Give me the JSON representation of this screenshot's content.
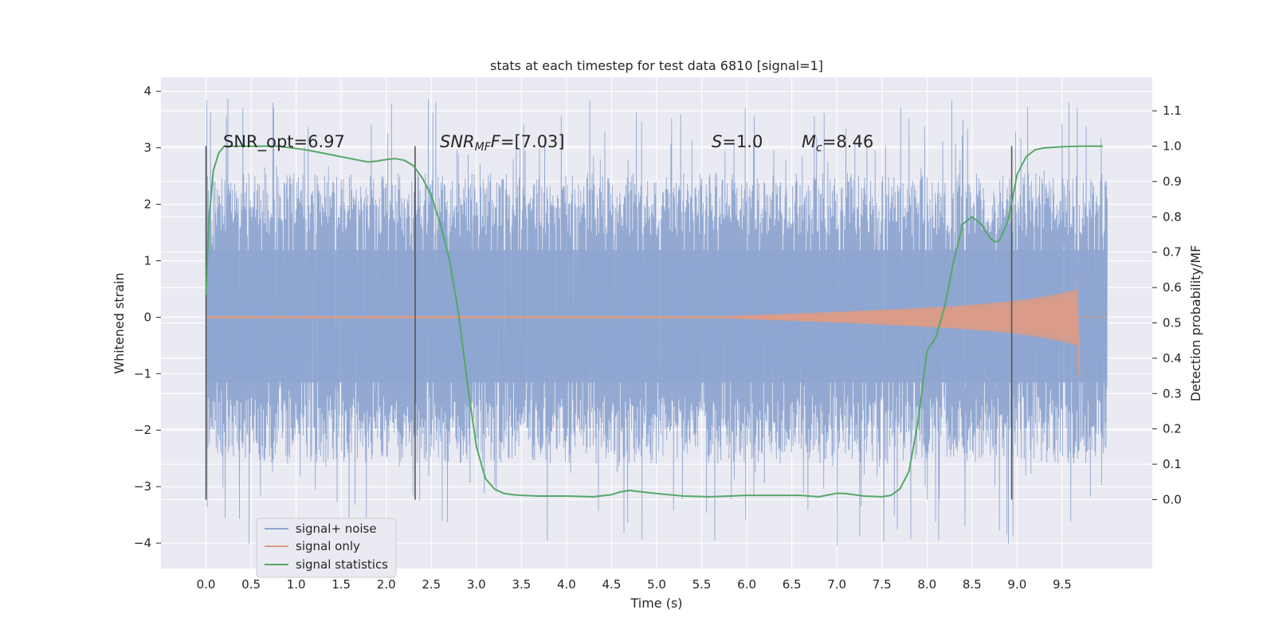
{
  "chart_data": {
    "type": "line",
    "title": "stats at each timestep for test data 6810 [signal=1]",
    "xlabel": "Time (s)",
    "ylabel": "Whitened strain",
    "ylabel_right": "Detection probability/MF",
    "xlim": [
      -0.5,
      10.5
    ],
    "ylim": [
      -4.45,
      4.25
    ],
    "ylim_right": [
      -0.195,
      1.195
    ],
    "x_ticks": [
      "0.0",
      "0.5",
      "1.0",
      "1.5",
      "2.0",
      "2.5",
      "3.0",
      "3.5",
      "4.0",
      "4.5",
      "5.0",
      "5.5",
      "6.0",
      "6.5",
      "7.0",
      "7.5",
      "8.0",
      "8.5",
      "9.0",
      "9.5"
    ],
    "y_ticks": [
      "4",
      "3",
      "2",
      "1",
      "0",
      "−1",
      "−2",
      "−3",
      "−4"
    ],
    "y_right_ticks": [
      "1.1",
      "1.0",
      "0.9",
      "0.8",
      "0.7",
      "0.6",
      "0.5",
      "0.4",
      "0.3",
      "0.2",
      "0.1",
      "0.0"
    ],
    "grid": true,
    "legend_placement": "lower-left",
    "annotations": {
      "snr_opt": "SNR_opt=6.97",
      "snr_mf_label": "SNR",
      "snr_mf_sub": "MF",
      "snr_mf_value": "=[7.03]",
      "s_label": "S",
      "s_value": "=1.0",
      "mc_label": "M",
      "mc_sub": "c",
      "mc_value": "=8.46"
    },
    "vertical_lines_x": [
      0.0,
      2.32,
      8.94
    ],
    "series": [
      {
        "name": "signal+ noise",
        "color": "#8ea5d0",
        "t_range": [
          0.0,
          10.0
        ],
        "envelope_upper": 1.7,
        "envelope_lower": -1.65,
        "peak_max": 3.9,
        "peak_min": -4.05
      },
      {
        "name": "signal only",
        "color": "#e29a80",
        "chirp_start": 5.3,
        "chirp_end": 9.67,
        "max_amplitude": 0.72,
        "min_amplitude": -1.05
      },
      {
        "name": "signal statistics",
        "color": "#55a868",
        "x": [
          0.0,
          0.03,
          0.08,
          0.14,
          0.2,
          0.3,
          0.5,
          0.8,
          1.1,
          1.3,
          1.5,
          1.7,
          1.8,
          1.9,
          2.0,
          2.1,
          2.2,
          2.3,
          2.4,
          2.5,
          2.6,
          2.7,
          2.8,
          2.9,
          3.0,
          3.1,
          3.2,
          3.3,
          3.4,
          3.5,
          3.7,
          4.0,
          4.3,
          4.5,
          4.6,
          4.7,
          4.8,
          5.0,
          5.3,
          5.6,
          6.0,
          6.3,
          6.6,
          6.8,
          7.0,
          7.1,
          7.3,
          7.5,
          7.6,
          7.7,
          7.8,
          7.9,
          8.0,
          8.1,
          8.2,
          8.3,
          8.4,
          8.5,
          8.6,
          8.7,
          8.75,
          8.8,
          8.9,
          9.0,
          9.1,
          9.2,
          9.3,
          9.5,
          9.7,
          9.8,
          9.95
        ],
        "y": [
          0.58,
          0.78,
          0.93,
          0.98,
          1.0,
          1.0,
          1.0,
          1.0,
          0.99,
          0.98,
          0.97,
          0.96,
          0.955,
          0.958,
          0.962,
          0.965,
          0.96,
          0.945,
          0.91,
          0.86,
          0.78,
          0.68,
          0.53,
          0.33,
          0.15,
          0.06,
          0.03,
          0.018,
          0.014,
          0.012,
          0.01,
          0.01,
          0.008,
          0.014,
          0.022,
          0.026,
          0.023,
          0.017,
          0.01,
          0.008,
          0.012,
          0.012,
          0.012,
          0.008,
          0.018,
          0.017,
          0.01,
          0.008,
          0.012,
          0.03,
          0.08,
          0.22,
          0.42,
          0.46,
          0.55,
          0.68,
          0.78,
          0.8,
          0.78,
          0.74,
          0.73,
          0.73,
          0.79,
          0.92,
          0.97,
          0.99,
          0.995,
          0.998,
          1.0,
          1.0,
          1.0
        ]
      }
    ]
  }
}
